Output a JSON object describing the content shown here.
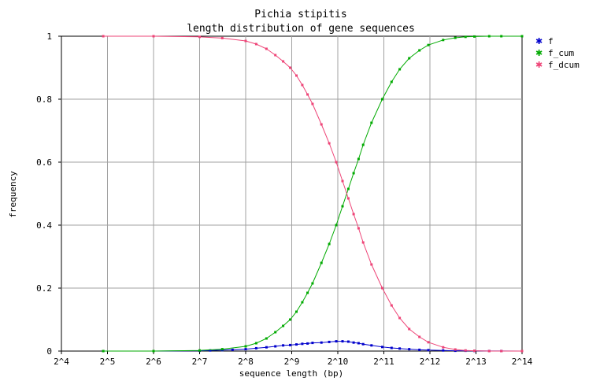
{
  "chart_data": {
    "type": "line",
    "title": "Pichia stipitis",
    "subtitle": "length distribution of gene sequences",
    "xlabel": "sequence length (bp)",
    "ylabel": "frequency",
    "x_scale": "log2",
    "xlim": [
      16,
      16384
    ],
    "ylim": [
      0,
      1
    ],
    "x_ticks": [
      {
        "value": 16,
        "label": "2^4"
      },
      {
        "value": 32,
        "label": "2^5"
      },
      {
        "value": 64,
        "label": "2^6"
      },
      {
        "value": 128,
        "label": "2^7"
      },
      {
        "value": 256,
        "label": "2^8"
      },
      {
        "value": 512,
        "label": "2^9"
      },
      {
        "value": 1024,
        "label": "2^10"
      },
      {
        "value": 2048,
        "label": "2^11"
      },
      {
        "value": 4096,
        "label": "2^12"
      },
      {
        "value": 8192,
        "label": "2^13"
      },
      {
        "value": 16384,
        "label": "2^14"
      }
    ],
    "y_ticks": [
      {
        "value": 0,
        "label": "0"
      },
      {
        "value": 0.2,
        "label": "0.2"
      },
      {
        "value": 0.4,
        "label": "0.4"
      },
      {
        "value": 0.6,
        "label": "0.6"
      },
      {
        "value": 0.8,
        "label": "0.8"
      },
      {
        "value": 1,
        "label": "1"
      }
    ],
    "grid": true,
    "legend_position": "right",
    "series": [
      {
        "name": "f",
        "color": "#0000cc",
        "x": [
          30,
          64,
          128,
          150,
          180,
          210,
          256,
          300,
          350,
          400,
          450,
          500,
          550,
          600,
          650,
          700,
          800,
          900,
          1000,
          1100,
          1200,
          1300,
          1400,
          1500,
          1700,
          2000,
          2300,
          2600,
          3000,
          3500,
          4000,
          5000,
          6000,
          7000,
          8000,
          10000,
          12000,
          16384
        ],
        "y": [
          0.0,
          0.0,
          0.001,
          0.002,
          0.003,
          0.004,
          0.006,
          0.009,
          0.012,
          0.015,
          0.018,
          0.019,
          0.021,
          0.023,
          0.024,
          0.026,
          0.027,
          0.029,
          0.031,
          0.031,
          0.03,
          0.027,
          0.025,
          0.022,
          0.018,
          0.013,
          0.01,
          0.008,
          0.006,
          0.004,
          0.003,
          0.002,
          0.001,
          0.001,
          0.0005,
          0.0003,
          0.0002,
          0.0
        ]
      },
      {
        "name": "f_cum",
        "color": "#00aa00",
        "x": [
          30,
          64,
          128,
          180,
          256,
          300,
          350,
          400,
          450,
          500,
          550,
          600,
          650,
          700,
          800,
          900,
          1000,
          1100,
          1200,
          1300,
          1400,
          1500,
          1700,
          2000,
          2300,
          2600,
          3000,
          3500,
          4000,
          5000,
          6000,
          7000,
          8000,
          10000,
          12000,
          16384
        ],
        "y": [
          0.0,
          0.0,
          0.002,
          0.006,
          0.015,
          0.025,
          0.04,
          0.06,
          0.08,
          0.1,
          0.125,
          0.155,
          0.185,
          0.215,
          0.28,
          0.34,
          0.4,
          0.46,
          0.515,
          0.565,
          0.61,
          0.655,
          0.725,
          0.8,
          0.855,
          0.895,
          0.93,
          0.955,
          0.972,
          0.988,
          0.995,
          0.998,
          0.999,
          1.0,
          1.0,
          1.0
        ]
      },
      {
        "name": "f_dcum",
        "color": "#ee4477",
        "x": [
          30,
          64,
          128,
          180,
          256,
          300,
          350,
          400,
          450,
          500,
          550,
          600,
          650,
          700,
          800,
          900,
          1000,
          1100,
          1200,
          1300,
          1400,
          1500,
          1700,
          2000,
          2300,
          2600,
          3000,
          3500,
          4000,
          5000,
          6000,
          7000,
          8000,
          10000,
          12000,
          16384
        ],
        "y": [
          1.0,
          1.0,
          0.998,
          0.994,
          0.985,
          0.975,
          0.96,
          0.94,
          0.92,
          0.9,
          0.875,
          0.845,
          0.815,
          0.785,
          0.72,
          0.66,
          0.6,
          0.54,
          0.485,
          0.435,
          0.39,
          0.345,
          0.275,
          0.2,
          0.145,
          0.105,
          0.07,
          0.045,
          0.028,
          0.012,
          0.005,
          0.002,
          0.001,
          0.0,
          0.0,
          0.0
        ]
      }
    ]
  }
}
